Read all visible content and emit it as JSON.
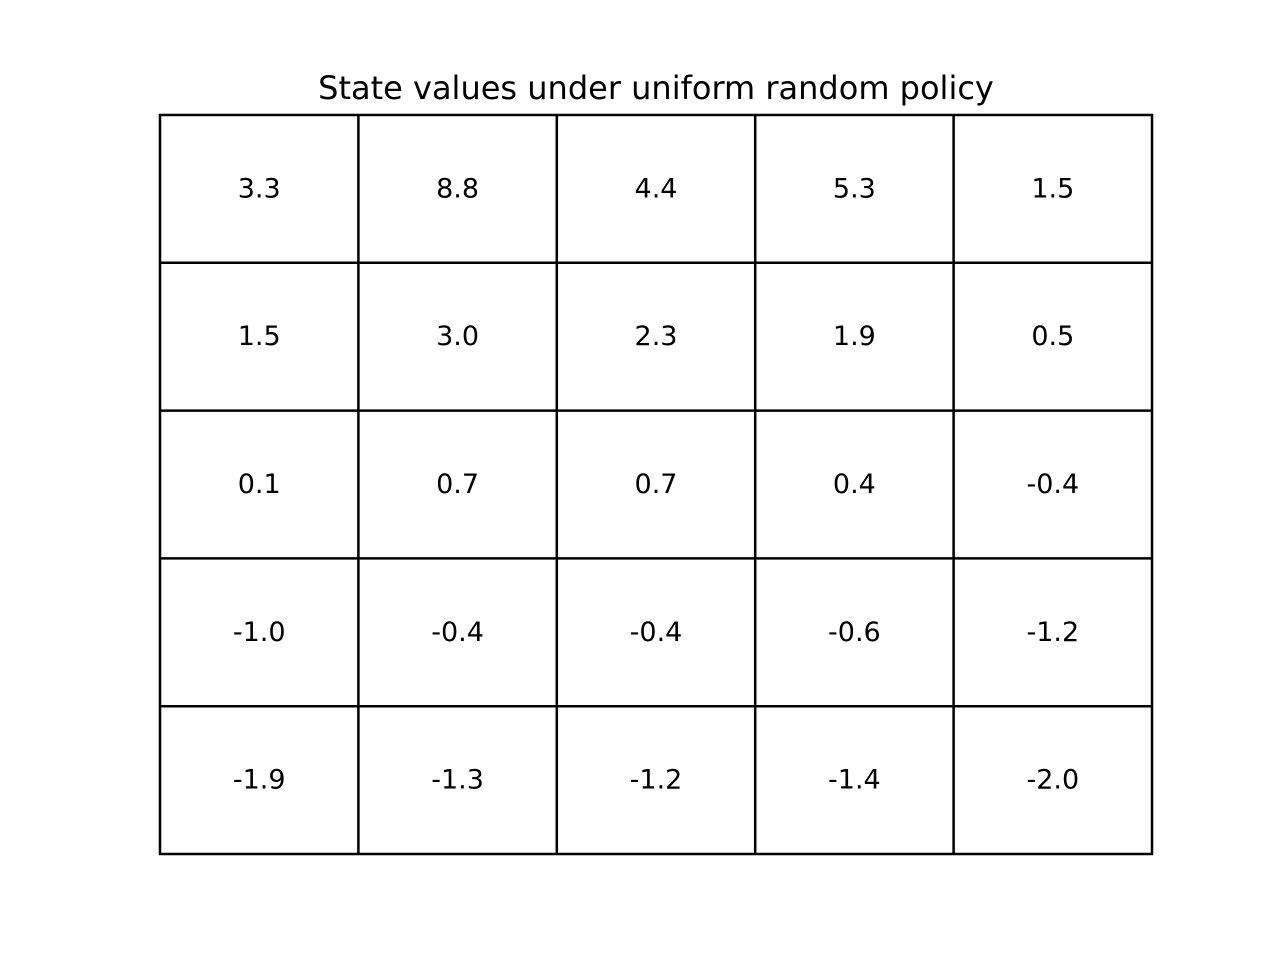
{
  "chart_data": {
    "type": "table",
    "title": "State values under uniform random policy",
    "rows": 5,
    "cols": 5,
    "cells": [
      [
        "3.3",
        "8.8",
        "4.4",
        "5.3",
        "1.5"
      ],
      [
        "1.5",
        "3.0",
        "2.3",
        "1.9",
        "0.5"
      ],
      [
        "0.1",
        "0.7",
        "0.7",
        "0.4",
        "-0.4"
      ],
      [
        "-1.0",
        "-0.4",
        "-0.4",
        "-0.6",
        "-1.2"
      ],
      [
        "-1.9",
        "-1.3",
        "-1.2",
        "-1.4",
        "-2.0"
      ]
    ],
    "grid": true,
    "border_color": "#000000",
    "background_color": "#ffffff"
  }
}
